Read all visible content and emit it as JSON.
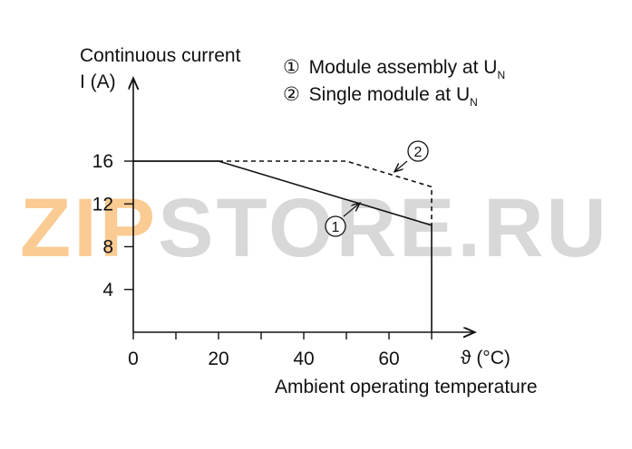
{
  "chart_data": {
    "type": "line",
    "ylabel_line1": "Continuous current",
    "ylabel_line2": "I (A)",
    "xlabel": "Ambient operating temperature",
    "x_unit": "ϑ (°C)",
    "x_ticks": [
      0,
      10,
      20,
      30,
      40,
      50,
      60,
      70
    ],
    "x_tick_labels": [
      {
        "x": 0,
        "label": "0"
      },
      {
        "x": 20,
        "label": "20"
      },
      {
        "x": 40,
        "label": "40"
      },
      {
        "x": 60,
        "label": "60"
      }
    ],
    "y_ticks": [
      4,
      8,
      12,
      16
    ],
    "y_tick_labels": [
      {
        "y": 4,
        "label": "4"
      },
      {
        "y": 8,
        "label": "8"
      },
      {
        "y": 12,
        "label": "12"
      },
      {
        "y": 16,
        "label": "16"
      }
    ],
    "xlim": [
      0,
      80
    ],
    "ylim": [
      0,
      24
    ],
    "grid": false,
    "series": [
      {
        "marker": "1",
        "style": "solid",
        "x": [
          0,
          20,
          70,
          70
        ],
        "y": [
          16,
          16,
          10,
          0
        ],
        "callout_at": [
          52,
          12.2
        ]
      },
      {
        "marker": "2",
        "style": "dashed",
        "x": [
          20,
          50,
          70,
          70
        ],
        "y": [
          16,
          16,
          13.6,
          10
        ],
        "callout_at": [
          62,
          15.6
        ]
      }
    ],
    "legend": [
      {
        "marker": "①",
        "text": "Module assembly at U",
        "sub": "N"
      },
      {
        "marker": "②",
        "text": "Single module at U",
        "sub": "N"
      }
    ],
    "legend_position": "top-right"
  },
  "watermark": {
    "text_orange": "ZIP",
    "text_gray": "STORE.RU",
    "color_orange": "#f6a13a",
    "color_gray": "#b9b9b9"
  },
  "colors": {
    "line": "#111111",
    "axis": "#111111"
  }
}
